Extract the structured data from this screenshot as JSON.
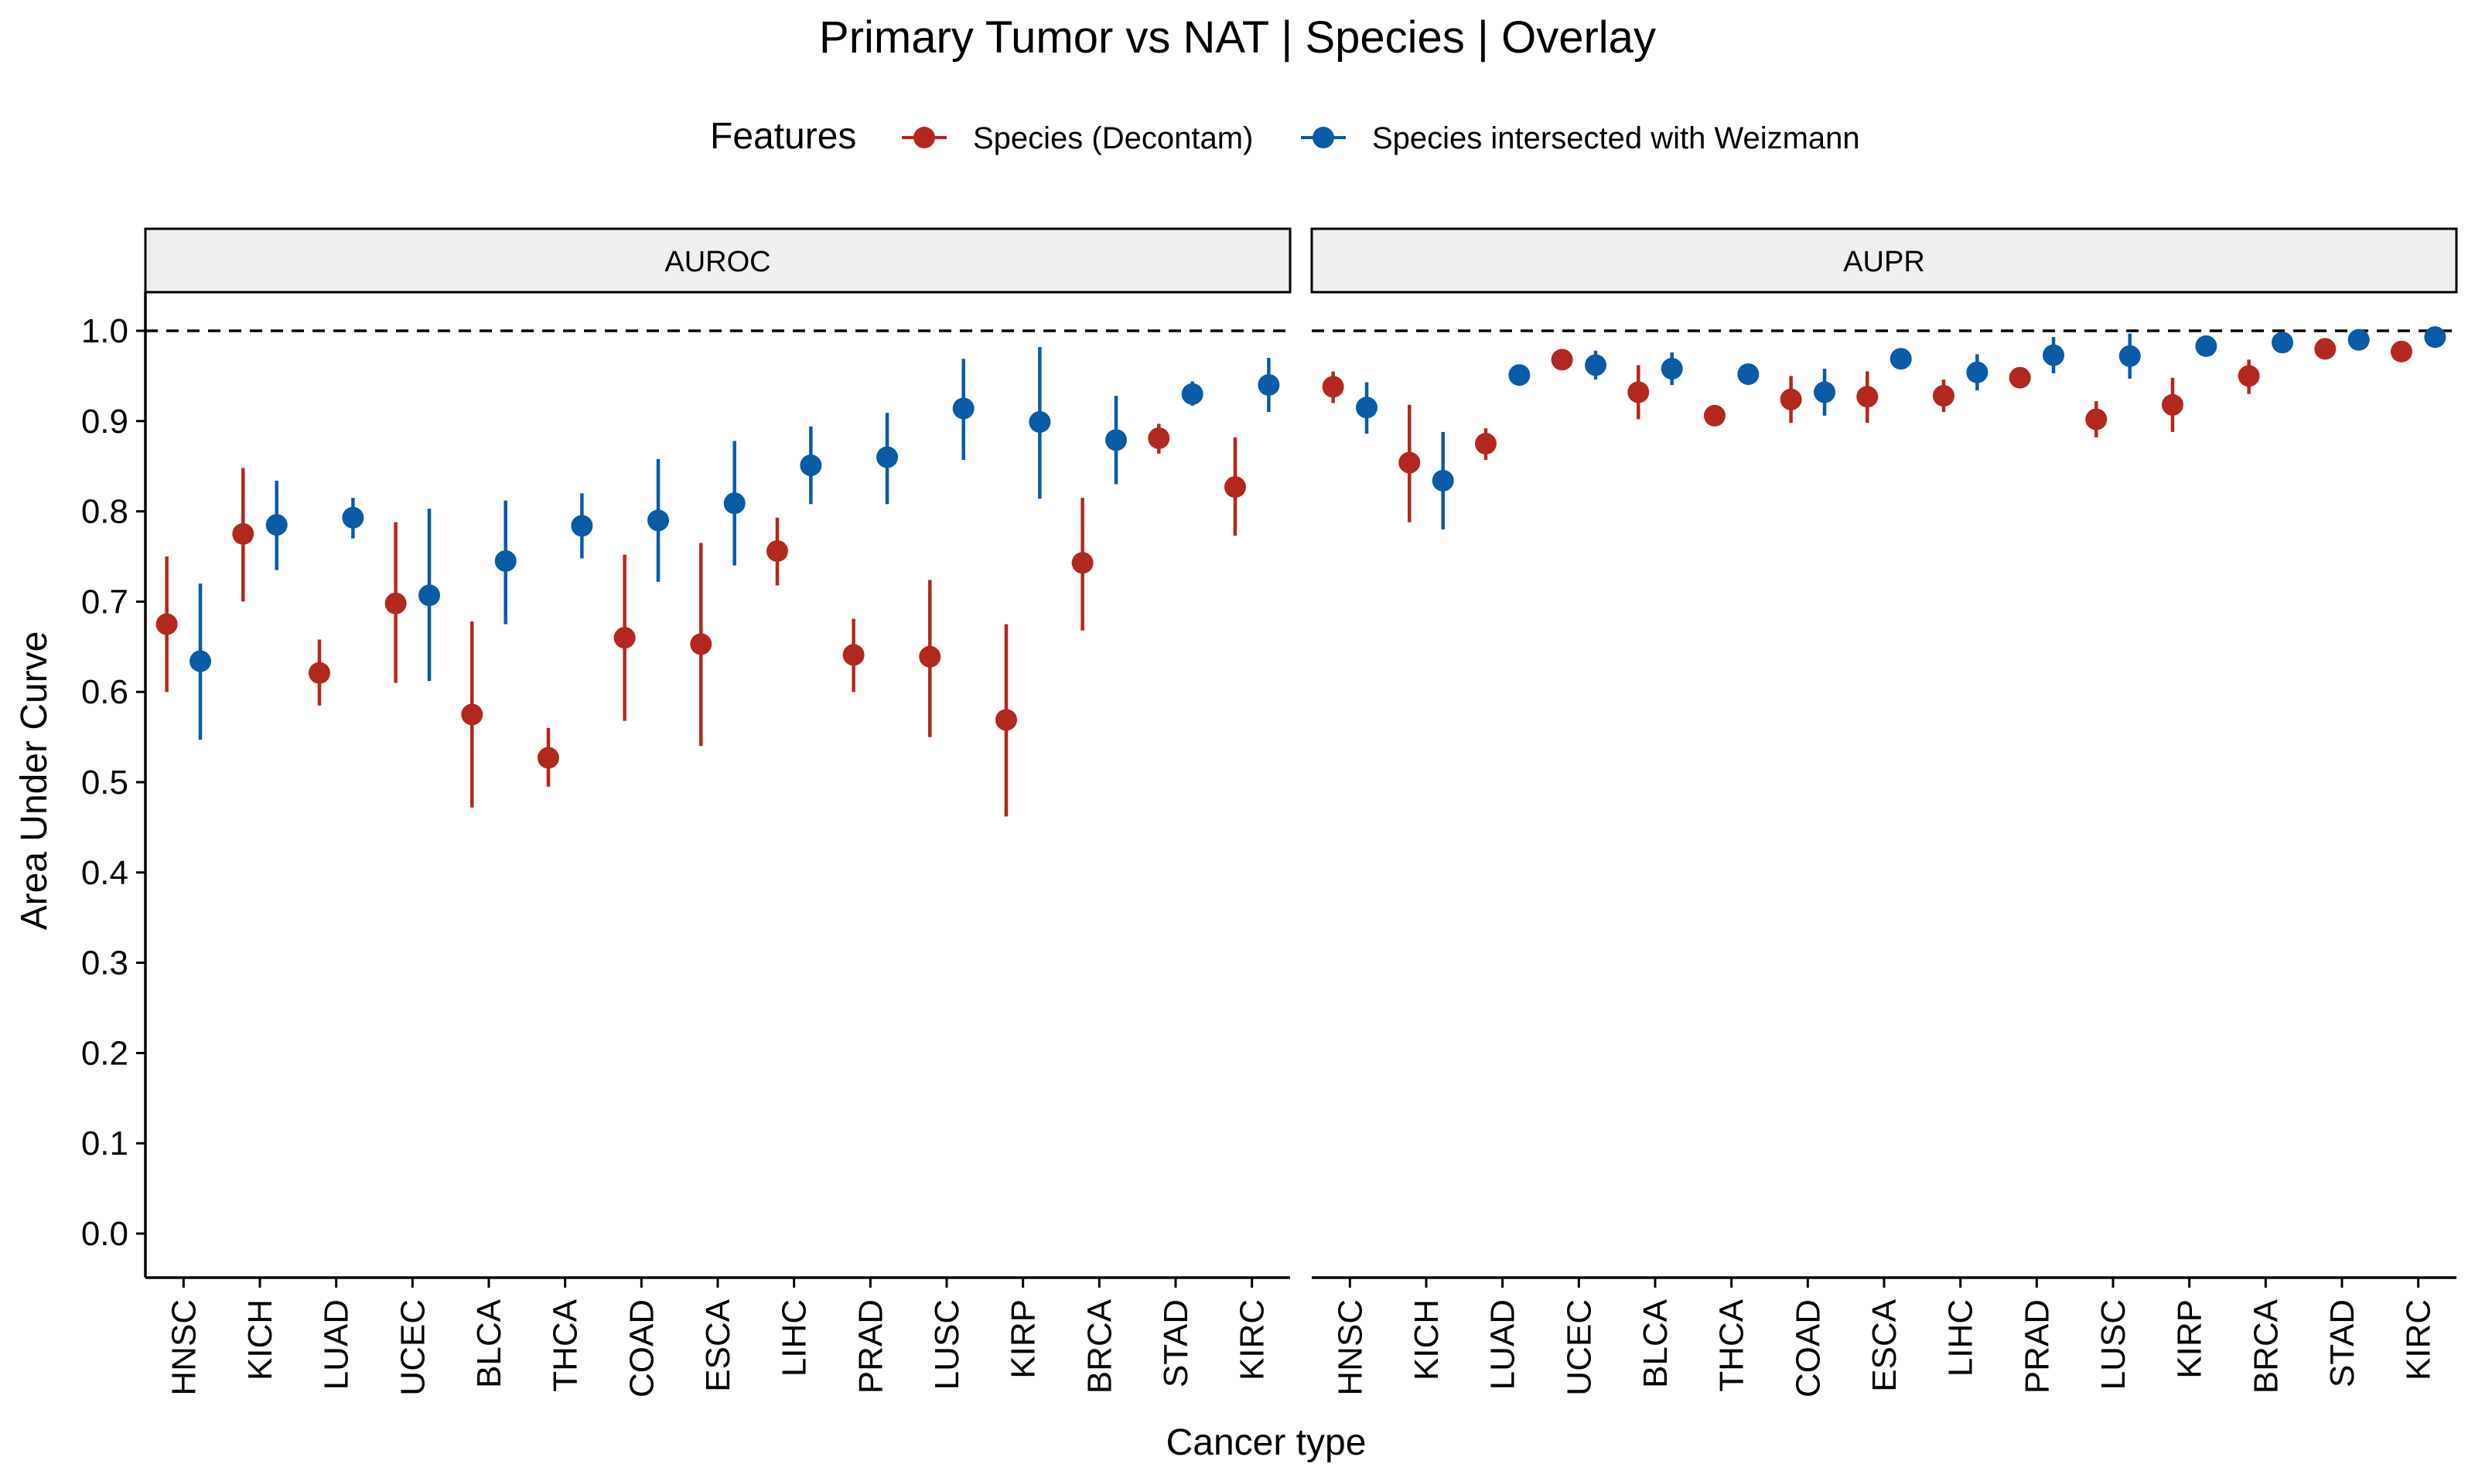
{
  "chart_data": {
    "type": "scatter",
    "title": "Primary Tumor vs NAT | Species | Overlay",
    "xlabel": "Cancer type",
    "ylabel": "Area Under Curve",
    "ylim": [
      -0.05,
      1.05
    ],
    "yticks": [
      "0.0",
      "0.1",
      "0.2",
      "0.3",
      "0.4",
      "0.5",
      "0.6",
      "0.7",
      "0.8",
      "0.9",
      "1.0"
    ],
    "reference_line": 1.0,
    "grid": false,
    "legend": {
      "title": "Features",
      "placement": "top",
      "entries": [
        {
          "name": "Species (Decontam)",
          "color": "#b2281e"
        },
        {
          "name": "Species intersected with Weizmann",
          "color": "#0a5aa6"
        }
      ]
    },
    "categories": [
      "HNSC",
      "KICH",
      "LUAD",
      "UCEC",
      "BLCA",
      "THCA",
      "COAD",
      "ESCA",
      "LIHC",
      "PRAD",
      "LUSC",
      "KIRP",
      "BRCA",
      "STAD",
      "KIRC"
    ],
    "panels": [
      {
        "name": "AUROC",
        "series": [
          {
            "name": "Species (Decontam)",
            "color": "#b2281e",
            "values": [
              0.675,
              0.775,
              0.621,
              0.698,
              0.575,
              0.527,
              0.66,
              0.653,
              0.756,
              0.641,
              0.639,
              0.569,
              0.743,
              0.881,
              0.827
            ],
            "lower": [
              0.6,
              0.7,
              0.585,
              0.61,
              0.472,
              0.495,
              0.568,
              0.54,
              0.718,
              0.6,
              0.55,
              0.462,
              0.668,
              0.864,
              0.773
            ],
            "upper": [
              0.75,
              0.848,
              0.658,
              0.788,
              0.678,
              0.56,
              0.752,
              0.765,
              0.793,
              0.681,
              0.724,
              0.675,
              0.815,
              0.897,
              0.882
            ]
          },
          {
            "name": "Species intersected with Weizmann",
            "color": "#0a5aa6",
            "values": [
              0.634,
              0.785,
              0.793,
              0.707,
              0.745,
              0.784,
              0.79,
              0.809,
              0.851,
              0.86,
              0.914,
              0.899,
              0.879,
              0.93,
              0.94
            ],
            "lower": [
              0.547,
              0.735,
              0.77,
              0.612,
              0.675,
              0.748,
              0.722,
              0.74,
              0.808,
              0.808,
              0.857,
              0.814,
              0.83,
              0.917,
              0.91
            ],
            "upper": [
              0.72,
              0.834,
              0.815,
              0.803,
              0.812,
              0.82,
              0.858,
              0.878,
              0.894,
              0.909,
              0.969,
              0.982,
              0.928,
              0.944,
              0.97
            ]
          }
        ]
      },
      {
        "name": "AUPR",
        "series": [
          {
            "name": "Species (Decontam)",
            "color": "#b2281e",
            "values": [
              0.938,
              0.854,
              0.875,
              0.968,
              0.932,
              0.906,
              0.924,
              0.927,
              0.928,
              0.948,
              0.902,
              0.918,
              0.95,
              0.98,
              0.977
            ],
            "lower": [
              0.92,
              0.788,
              0.857,
              0.96,
              0.902,
              0.898,
              0.898,
              0.898,
              0.91,
              0.94,
              0.882,
              0.888,
              0.93,
              0.972,
              0.97
            ],
            "upper": [
              0.955,
              0.918,
              0.892,
              0.976,
              0.962,
              0.914,
              0.95,
              0.955,
              0.946,
              0.956,
              0.922,
              0.948,
              0.968,
              0.988,
              0.984
            ]
          },
          {
            "name": "Species intersected with Weizmann",
            "color": "#0a5aa6",
            "values": [
              0.915,
              0.834,
              0.951,
              0.962,
              0.958,
              0.952,
              0.932,
              0.969,
              0.954,
              0.973,
              0.972,
              0.983,
              0.987,
              0.99,
              0.993
            ],
            "lower": [
              0.886,
              0.78,
              0.943,
              0.946,
              0.94,
              0.944,
              0.906,
              0.961,
              0.934,
              0.953,
              0.947,
              0.976,
              0.98,
              0.983,
              0.986
            ],
            "upper": [
              0.943,
              0.888,
              0.959,
              0.978,
              0.976,
              0.96,
              0.958,
              0.977,
              0.974,
              0.993,
              0.997,
              0.99,
              0.994,
              0.997,
              1.0
            ]
          }
        ]
      }
    ]
  }
}
